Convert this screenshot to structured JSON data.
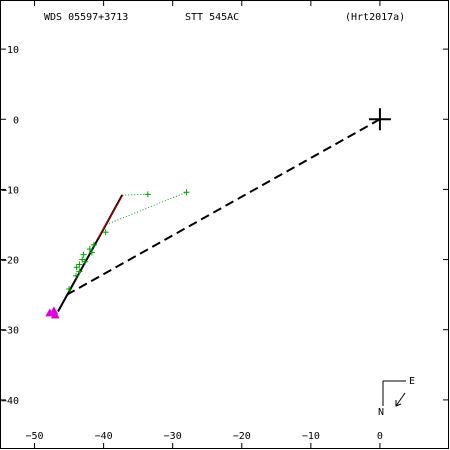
{
  "header": {
    "left": "WDS 05597+3713",
    "center": "STT 545AC",
    "right": "(Hrt2017a)"
  },
  "compass": {
    "east": "E",
    "north": "N"
  },
  "chart_data": {
    "type": "scatter",
    "title": "",
    "xlabel": "",
    "ylabel": "",
    "xlim": [
      -55,
      10
    ],
    "ylim": [
      -47,
      17
    ],
    "x_ticks": [
      {
        "value": -50,
        "label": "−50"
      },
      {
        "value": -40,
        "label": "−40"
      },
      {
        "value": -30,
        "label": "−30"
      },
      {
        "value": -20,
        "label": "−20"
      },
      {
        "value": -10,
        "label": "−10"
      },
      {
        "value": 0,
        "label": "0"
      }
    ],
    "y_ticks": [
      {
        "value": 10,
        "label": "10"
      },
      {
        "value": 0,
        "label": "0"
      },
      {
        "value": -10,
        "label": "−10"
      },
      {
        "value": -20,
        "label": "−20"
      },
      {
        "value": -30,
        "label": "−30"
      },
      {
        "value": -40,
        "label": "−40"
      }
    ],
    "primary": {
      "x": 0,
      "y": 0
    },
    "fit_line": [
      [
        -37.3,
        -10.8
      ],
      [
        -46.6,
        -27.4
      ]
    ],
    "fit_line_red": [
      [
        -37.3,
        -10.8
      ],
      [
        -41.0,
        -17.0
      ]
    ],
    "dashed_line": [
      [
        0,
        0
      ],
      [
        -45.3,
        -25.0
      ]
    ],
    "observations": [
      {
        "x": -33.6,
        "y": -10.7
      },
      {
        "x": -28.0,
        "y": -10.4
      },
      {
        "x": -39.7,
        "y": -16.1
      },
      {
        "x": -41.4,
        "y": -17.9
      },
      {
        "x": -42.0,
        "y": -18.5
      },
      {
        "x": -41.7,
        "y": -19.0
      },
      {
        "x": -42.9,
        "y": -19.3
      },
      {
        "x": -43.1,
        "y": -20.0
      },
      {
        "x": -42.7,
        "y": -20.3
      },
      {
        "x": -43.5,
        "y": -20.7
      },
      {
        "x": -43.9,
        "y": -21.1
      },
      {
        "x": -43.5,
        "y": -21.7
      },
      {
        "x": -44.0,
        "y": -22.3
      },
      {
        "x": -45.0,
        "y": -24.2
      }
    ],
    "links": [
      [
        [
          -37.3,
          -10.8
        ],
        [
          -33.6,
          -10.7
        ]
      ],
      [
        [
          -39.6,
          -15.0
        ],
        [
          -28.0,
          -10.4
        ]
      ]
    ],
    "triangles": [
      {
        "x": -47.8,
        "y": -27.6
      },
      {
        "x": -47.2,
        "y": -27.3
      },
      {
        "x": -47.0,
        "y": -27.9
      }
    ],
    "grid": false,
    "colors": {
      "axes": "#000000",
      "observation": "#00a000",
      "triangle": "#dd00dd",
      "fit": "#000000",
      "fit_overlay": "#ff0000"
    }
  }
}
